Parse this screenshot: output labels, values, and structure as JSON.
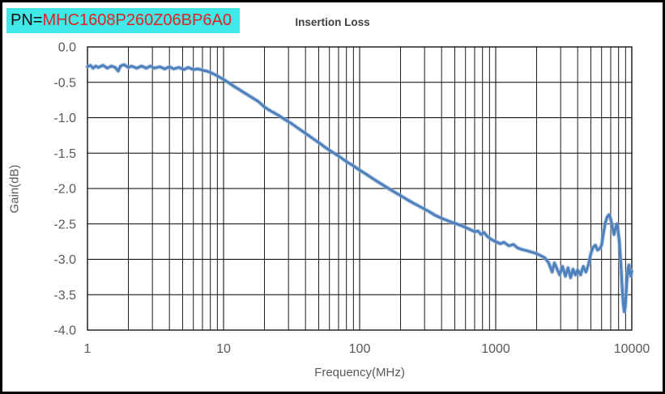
{
  "pn_label": {
    "prefix": "PN=",
    "part_number": "MHC1608P260Z06BP6A0",
    "bg_color": "#41e8e8",
    "prefix_color": "#111111",
    "part_color": "#e02222"
  },
  "colors": {
    "curve": "#4f81bd",
    "curve_glow": "#9db9dc",
    "gridline": "#000000",
    "plot_border": "#000000",
    "tick_text": "#595959",
    "axis_title_text": "#595959",
    "chart_title_text": "#404040",
    "outer_border": "#000000",
    "background": "#ffffff"
  },
  "chart_data": {
    "type": "line",
    "title": "Insertion Loss",
    "xlabel": "Frequency(MHz)",
    "ylabel": "Gain(dB)",
    "x_scale": "log",
    "xlim": [
      1,
      10000
    ],
    "ylim": [
      -4.0,
      0.0
    ],
    "grid": "black major horizontal lines, black major+minor vertical log gridlines",
    "legend": "none",
    "xticks": {
      "values": [
        1,
        10,
        100,
        1000,
        10000
      ],
      "labels": [
        "1",
        "10",
        "100",
        "1000",
        "10000"
      ]
    },
    "yticks": {
      "values": [
        0.0,
        -0.5,
        -1.0,
        -1.5,
        -2.0,
        -2.5,
        -3.0,
        -3.5,
        -4.0
      ],
      "labels": [
        "0.0",
        "-0.5",
        "-1.0",
        "-1.5",
        "-2.0",
        "-2.5",
        "-3.0",
        "-3.5",
        "-4.0"
      ]
    },
    "series": [
      {
        "name": "Insertion Loss",
        "color": "#4f81bd",
        "x_unit": "MHz",
        "y_unit": "dB",
        "points": [
          [
            1.0,
            -0.28
          ],
          [
            1.05,
            -0.26
          ],
          [
            1.1,
            -0.3
          ],
          [
            1.15,
            -0.27
          ],
          [
            1.2,
            -0.29
          ],
          [
            1.3,
            -0.26
          ],
          [
            1.4,
            -0.3
          ],
          [
            1.5,
            -0.27
          ],
          [
            1.6,
            -0.29
          ],
          [
            1.68,
            -0.34
          ],
          [
            1.75,
            -0.27
          ],
          [
            1.85,
            -0.25
          ],
          [
            2.0,
            -0.29
          ],
          [
            2.1,
            -0.27
          ],
          [
            2.3,
            -0.3
          ],
          [
            2.5,
            -0.27
          ],
          [
            2.7,
            -0.3
          ],
          [
            2.9,
            -0.27
          ],
          [
            3.1,
            -0.3
          ],
          [
            3.4,
            -0.28
          ],
          [
            3.7,
            -0.31
          ],
          [
            4.0,
            -0.28
          ],
          [
            4.3,
            -0.31
          ],
          [
            4.7,
            -0.29
          ],
          [
            5.1,
            -0.32
          ],
          [
            5.5,
            -0.29
          ],
          [
            6.0,
            -0.32
          ],
          [
            6.5,
            -0.31
          ],
          [
            7.0,
            -0.33
          ],
          [
            7.5,
            -0.34
          ],
          [
            8.0,
            -0.36
          ],
          [
            8.6,
            -0.39
          ],
          [
            9.2,
            -0.42
          ],
          [
            10,
            -0.46
          ],
          [
            11,
            -0.51
          ],
          [
            12,
            -0.56
          ],
          [
            13,
            -0.6
          ],
          [
            14,
            -0.64
          ],
          [
            16,
            -0.71
          ],
          [
            18,
            -0.77
          ],
          [
            20,
            -0.85
          ],
          [
            22,
            -0.9
          ],
          [
            25,
            -0.96
          ],
          [
            28,
            -1.02
          ],
          [
            32,
            -1.09
          ],
          [
            36,
            -1.16
          ],
          [
            40,
            -1.22
          ],
          [
            45,
            -1.29
          ],
          [
            50,
            -1.35
          ],
          [
            55,
            -1.41
          ],
          [
            60,
            -1.46
          ],
          [
            70,
            -1.54
          ],
          [
            80,
            -1.62
          ],
          [
            90,
            -1.68
          ],
          [
            100,
            -1.74
          ],
          [
            110,
            -1.79
          ],
          [
            125,
            -1.86
          ],
          [
            140,
            -1.92
          ],
          [
            160,
            -1.99
          ],
          [
            180,
            -2.05
          ],
          [
            200,
            -2.1
          ],
          [
            225,
            -2.16
          ],
          [
            250,
            -2.21
          ],
          [
            280,
            -2.26
          ],
          [
            320,
            -2.32
          ],
          [
            360,
            -2.38
          ],
          [
            400,
            -2.42
          ],
          [
            450,
            -2.46
          ],
          [
            500,
            -2.49
          ],
          [
            550,
            -2.52
          ],
          [
            600,
            -2.55
          ],
          [
            650,
            -2.58
          ],
          [
            700,
            -2.61
          ],
          [
            740,
            -2.6
          ],
          [
            780,
            -2.65
          ],
          [
            820,
            -2.62
          ],
          [
            860,
            -2.67
          ],
          [
            900,
            -2.7
          ],
          [
            950,
            -2.73
          ],
          [
            1000,
            -2.75
          ],
          [
            1080,
            -2.78
          ],
          [
            1150,
            -2.76
          ],
          [
            1250,
            -2.81
          ],
          [
            1350,
            -2.79
          ],
          [
            1450,
            -2.84
          ],
          [
            1550,
            -2.86
          ],
          [
            1700,
            -2.88
          ],
          [
            1850,
            -2.9
          ],
          [
            2000,
            -2.92
          ],
          [
            2150,
            -2.95
          ],
          [
            2300,
            -2.98
          ],
          [
            2450,
            -3.05
          ],
          [
            2600,
            -3.18
          ],
          [
            2700,
            -3.05
          ],
          [
            2800,
            -3.12
          ],
          [
            2950,
            -3.22
          ],
          [
            3100,
            -3.1
          ],
          [
            3250,
            -3.24
          ],
          [
            3400,
            -3.12
          ],
          [
            3550,
            -3.26
          ],
          [
            3700,
            -3.14
          ],
          [
            3850,
            -3.22
          ],
          [
            4000,
            -3.15
          ],
          [
            4200,
            -3.22
          ],
          [
            4400,
            -3.1
          ],
          [
            4600,
            -3.18
          ],
          [
            4800,
            -3.08
          ],
          [
            5000,
            -2.92
          ],
          [
            5200,
            -2.83
          ],
          [
            5400,
            -2.8
          ],
          [
            5600,
            -2.87
          ],
          [
            5800,
            -2.85
          ],
          [
            6000,
            -2.8
          ],
          [
            6200,
            -2.62
          ],
          [
            6400,
            -2.48
          ],
          [
            6600,
            -2.4
          ],
          [
            6800,
            -2.37
          ],
          [
            7000,
            -2.43
          ],
          [
            7200,
            -2.55
          ],
          [
            7400,
            -2.65
          ],
          [
            7600,
            -2.56
          ],
          [
            7750,
            -2.5
          ],
          [
            7900,
            -2.57
          ],
          [
            8100,
            -2.75
          ],
          [
            8300,
            -3.05
          ],
          [
            8500,
            -3.4
          ],
          [
            8650,
            -3.62
          ],
          [
            8800,
            -3.74
          ],
          [
            8950,
            -3.68
          ],
          [
            9100,
            -3.45
          ],
          [
            9250,
            -3.25
          ],
          [
            9400,
            -3.12
          ],
          [
            9550,
            -3.08
          ],
          [
            9700,
            -3.2
          ],
          [
            9850,
            -3.24
          ],
          [
            10000,
            -3.17
          ]
        ]
      }
    ]
  }
}
